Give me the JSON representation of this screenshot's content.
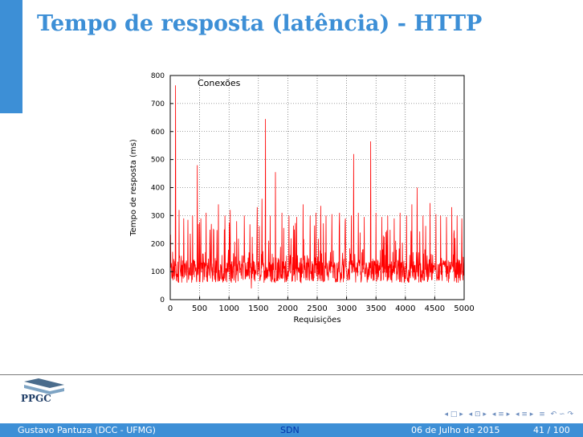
{
  "slide": {
    "title": "Tempo de resposta (latência) - HTTP"
  },
  "logo": {
    "text": "PPGC"
  },
  "nav": {
    "icons": [
      "nav-frame-prev-icon",
      "nav-frame-next-icon",
      "nav-subsection-icon",
      "nav-section-icon",
      "nav-align-icon",
      "nav-search-icon"
    ],
    "glyphs": [
      "◂ □ ▸",
      "◂ ⊡ ▸",
      "◂ ≡ ▸",
      "◂ ≡ ▸",
      "≡",
      "↶ ∽ ↷"
    ]
  },
  "footer": {
    "author": "Gustavo Pantuza (DCC - UFMG)",
    "center": "SDN",
    "date": "06 de Julho de 2015",
    "page": "41 / 100"
  },
  "colors": {
    "accent": "#3d8fd6",
    "series": "#ff0000"
  },
  "chart_data": {
    "type": "line",
    "title": "",
    "xlabel": "Requisições",
    "ylabel": "Tempo de resposta (ms)",
    "xlim": [
      0,
      5000
    ],
    "ylim": [
      0,
      800
    ],
    "xticks": [
      0,
      500,
      1000,
      1500,
      2000,
      2500,
      3000,
      3500,
      4000,
      4500,
      5000
    ],
    "yticks": [
      0,
      100,
      200,
      300,
      400,
      500,
      600,
      700,
      800
    ],
    "grid": true,
    "legend": "top-left",
    "series": [
      {
        "name": "Conexões",
        "baseline_range_ms": [
          60,
          140
        ],
        "spikes": [
          [
            90,
            765
          ],
          [
            150,
            320
          ],
          [
            230,
            290
          ],
          [
            300,
            285
          ],
          [
            380,
            300
          ],
          [
            460,
            480
          ],
          [
            520,
            290
          ],
          [
            610,
            310
          ],
          [
            700,
            270
          ],
          [
            820,
            340
          ],
          [
            930,
            300
          ],
          [
            1020,
            320
          ],
          [
            1130,
            280
          ],
          [
            1260,
            300
          ],
          [
            1380,
            310
          ],
          [
            1480,
            330
          ],
          [
            1560,
            360
          ],
          [
            1620,
            645
          ],
          [
            1700,
            300
          ],
          [
            1790,
            455
          ],
          [
            1900,
            310
          ],
          [
            2020,
            300
          ],
          [
            2150,
            295
          ],
          [
            2260,
            340
          ],
          [
            2380,
            300
          ],
          [
            2480,
            310
          ],
          [
            2560,
            335
          ],
          [
            2650,
            300
          ],
          [
            2750,
            305
          ],
          [
            2880,
            310
          ],
          [
            2980,
            290
          ],
          [
            3080,
            300
          ],
          [
            3120,
            520
          ],
          [
            3200,
            310
          ],
          [
            3300,
            295
          ],
          [
            3410,
            565
          ],
          [
            3500,
            310
          ],
          [
            3600,
            295
          ],
          [
            3700,
            300
          ],
          [
            3810,
            290
          ],
          [
            3910,
            310
          ],
          [
            4020,
            300
          ],
          [
            4110,
            340
          ],
          [
            4200,
            400
          ],
          [
            4300,
            300
          ],
          [
            4420,
            345
          ],
          [
            4520,
            305
          ],
          [
            4600,
            300
          ],
          [
            4700,
            295
          ],
          [
            4790,
            330
          ],
          [
            4880,
            300
          ],
          [
            4960,
            290
          ]
        ],
        "min_point": [
          1380,
          40
        ]
      }
    ]
  }
}
